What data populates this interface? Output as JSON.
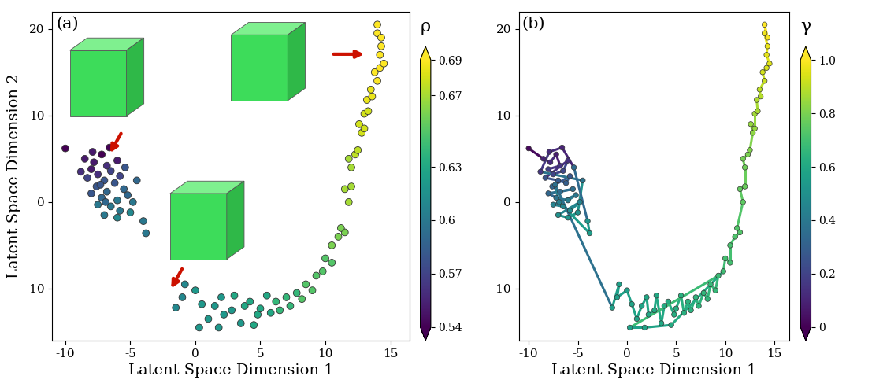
{
  "chart_data": [
    {
      "type": "scatter",
      "title": "(a)",
      "x_label": "Latent Space Dimension 1",
      "y_label": "Latent Space Dimension 2",
      "x": [
        -10,
        -8.5,
        -7.8,
        -7.2,
        -6.8,
        -8,
        -7.5,
        -6.5,
        -6,
        -8.3,
        -7,
        -6.2,
        -5.8,
        -7.6,
        -6.8,
        -5.5,
        -8,
        -7.2,
        -6,
        -5.2,
        -7.5,
        -6.5,
        -5.8,
        -4.8,
        -7,
        -6,
        -5,
        -4.5,
        -8.8,
        -7.9,
        -6.6,
        -5.4,
        -4,
        -3.8,
        -6.9,
        -7.3,
        -1.5,
        -0.8,
        -1,
        0,
        0.5,
        1,
        1.5,
        2,
        2.2,
        2.8,
        3,
        3.5,
        3.8,
        4.2,
        4.8,
        5,
        5.5,
        5.8,
        6.2,
        6.5,
        7,
        7.3,
        7.8,
        8.2,
        8.5,
        9,
        9.3,
        0.3,
        1.8,
        4.5,
        9.8,
        10,
        10.5,
        10.5,
        11,
        11.5,
        11.2,
        11.8,
        11.5,
        12,
        12,
        11.8,
        12.3,
        12.5,
        12.8,
        12.6,
        13,
        13,
        13.3,
        13.2,
        13.6,
        13.5,
        14,
        13.8,
        14.2,
        14.5,
        14.2,
        14.3,
        14,
        14,
        14.3
      ],
      "y": [
        6.2,
        5,
        4.6,
        5.5,
        4.2,
        3.8,
        3.2,
        3.6,
        4.8,
        2.8,
        2.5,
        2.2,
        3,
        1.8,
        1.2,
        1.5,
        1,
        0.5,
        0.2,
        0.8,
        -0.3,
        -0.5,
        -1,
        0,
        -1.5,
        -1.8,
        -1.2,
        2.5,
        3.5,
        5.8,
        6.3,
        4,
        -2.2,
        -3.6,
        0,
        2,
        -12.2,
        -9.5,
        -11,
        -10.2,
        -11.8,
        -13.5,
        -12,
        -11,
        -13,
        -12.5,
        -10.8,
        -14,
        -12,
        -11.5,
        -13,
        -12.3,
        -10.8,
        -12.8,
        -11.5,
        -12.5,
        -11,
        -12,
        -10.5,
        -11.2,
        -9.5,
        -10.2,
        -8.5,
        -14.5,
        -14.5,
        -14.2,
        -8,
        -6.5,
        -7,
        -5,
        -4,
        -3.5,
        -3,
        0,
        1.5,
        1.8,
        4,
        5,
        5.5,
        6,
        8,
        9,
        8.5,
        10.2,
        10.5,
        11.8,
        12.2,
        13,
        14,
        15,
        15.5,
        16,
        17,
        18,
        19.5,
        20.5,
        19
      ],
      "xlim": [
        -11,
        16.5
      ],
      "ylim": [
        -16,
        22
      ],
      "xticks": [
        -10,
        -5,
        0,
        5,
        10,
        15
      ],
      "yticks": [
        -10,
        0,
        10,
        20
      ],
      "colorbar": {
        "label": "ρ",
        "values": [
          0.54,
          0.55,
          0.55,
          0.54,
          0.56,
          0.55,
          0.56,
          0.57,
          0.55,
          0.57,
          0.58,
          0.58,
          0.57,
          0.58,
          0.59,
          0.59,
          0.58,
          0.59,
          0.6,
          0.59,
          0.6,
          0.6,
          0.6,
          0.6,
          0.6,
          0.61,
          0.61,
          0.59,
          0.56,
          0.55,
          0.54,
          0.58,
          0.6,
          0.6,
          0.59,
          0.58,
          0.61,
          0.61,
          0.61,
          0.62,
          0.62,
          0.62,
          0.62,
          0.62,
          0.62,
          0.62,
          0.63,
          0.62,
          0.63,
          0.63,
          0.63,
          0.63,
          0.63,
          0.63,
          0.64,
          0.64,
          0.64,
          0.64,
          0.64,
          0.65,
          0.65,
          0.65,
          0.65,
          0.62,
          0.62,
          0.63,
          0.65,
          0.65,
          0.65,
          0.66,
          0.66,
          0.66,
          0.66,
          0.67,
          0.67,
          0.67,
          0.67,
          0.67,
          0.675,
          0.675,
          0.68,
          0.68,
          0.68,
          0.68,
          0.68,
          0.685,
          0.685,
          0.685,
          0.69,
          0.69,
          0.69,
          0.69,
          0.69,
          0.695,
          0.695,
          0.695,
          0.695
        ],
        "range": [
          0.54,
          0.69
        ],
        "ticks": [
          0.54,
          0.57,
          0.6,
          0.63,
          0.67,
          0.69
        ]
      }
    },
    {
      "type": "line",
      "marker": "o",
      "title": "(b)",
      "x_label": "Latent Space Dimension 1",
      "x": [
        -10,
        -8.5,
        -7.8,
        -7.2,
        -6.8,
        -8,
        -7.5,
        -6.5,
        -6,
        -8.3,
        -7,
        -6.2,
        -5.8,
        -7.6,
        -6.8,
        -5.5,
        -8,
        -7.2,
        -6,
        -5.2,
        -7.5,
        -6.5,
        -5.8,
        -4.8,
        -7,
        -6,
        -5,
        -4.5,
        -8.8,
        -7.9,
        -6.6,
        -5.4,
        -4,
        -3.8,
        -6.9,
        -7.3,
        -1.5,
        -0.8,
        -1,
        0,
        0.5,
        1,
        1.5,
        2,
        2.2,
        2.8,
        3,
        3.5,
        3.8,
        4.2,
        4.8,
        5,
        5.5,
        5.8,
        6.2,
        6.5,
        7,
        7.3,
        7.8,
        8.2,
        8.5,
        9,
        9.3,
        0.3,
        1.8,
        4.5,
        9.8,
        10,
        10.5,
        10.5,
        11,
        11.5,
        11.2,
        11.8,
        11.5,
        12,
        12,
        11.8,
        12.3,
        12.5,
        12.8,
        12.6,
        13,
        13,
        13.3,
        13.2,
        13.6,
        13.5,
        14,
        13.8,
        14.2,
        14.5,
        14.2,
        14.3,
        14,
        14,
        14.3
      ],
      "y": [
        6.2,
        5,
        4.6,
        5.5,
        4.2,
        3.8,
        3.2,
        3.6,
        4.8,
        2.8,
        2.5,
        2.2,
        3,
        1.8,
        1.2,
        1.5,
        1,
        0.5,
        0.2,
        0.8,
        -0.3,
        -0.5,
        -1,
        0,
        -1.5,
        -1.8,
        -1.2,
        2.5,
        3.5,
        5.8,
        6.3,
        4,
        -2.2,
        -3.6,
        0,
        2,
        -12.2,
        -9.5,
        -11,
        -10.2,
        -11.8,
        -13.5,
        -12,
        -11,
        -13,
        -12.5,
        -10.8,
        -14,
        -12,
        -11.5,
        -13,
        -12.3,
        -10.8,
        -12.8,
        -11.5,
        -12.5,
        -11,
        -12,
        -10.5,
        -11.2,
        -9.5,
        -10.2,
        -8.5,
        -14.5,
        -14.5,
        -14.2,
        -8,
        -6.5,
        -7,
        -5,
        -4,
        -3.5,
        -3,
        0,
        1.5,
        1.8,
        4,
        5,
        5.5,
        6,
        8,
        9,
        8.5,
        10.2,
        10.5,
        11.8,
        12.2,
        13,
        14,
        15,
        15.5,
        16,
        17,
        18,
        19.5,
        20.5,
        19
      ],
      "xlim": [
        -11,
        16.5
      ],
      "ylim": [
        -16,
        22
      ],
      "xticks": [
        -10,
        -5,
        0,
        5,
        10,
        15
      ],
      "yticks": [
        -10,
        0,
        10,
        20
      ],
      "colorbar": {
        "label": "γ",
        "values": [
          0.02,
          0.1,
          0.12,
          0.08,
          0.15,
          0.18,
          0.2,
          0.22,
          0.14,
          0.25,
          0.28,
          0.3,
          0.27,
          0.32,
          0.35,
          0.36,
          0.33,
          0.38,
          0.42,
          0.4,
          0.44,
          0.46,
          0.48,
          0.45,
          0.5,
          0.52,
          0.5,
          0.38,
          0.16,
          0.12,
          0.1,
          0.34,
          0.53,
          0.55,
          0.43,
          0.37,
          0.56,
          0.56,
          0.57,
          0.57,
          0.58,
          0.58,
          0.58,
          0.59,
          0.59,
          0.6,
          0.6,
          0.6,
          0.61,
          0.61,
          0.62,
          0.62,
          0.63,
          0.63,
          0.64,
          0.64,
          0.65,
          0.65,
          0.66,
          0.66,
          0.67,
          0.67,
          0.68,
          0.57,
          0.58,
          0.61,
          0.69,
          0.7,
          0.7,
          0.71,
          0.72,
          0.73,
          0.73,
          0.75,
          0.76,
          0.77,
          0.78,
          0.79,
          0.8,
          0.81,
          0.83,
          0.84,
          0.84,
          0.86,
          0.87,
          0.88,
          0.89,
          0.9,
          0.92,
          0.93,
          0.94,
          0.95,
          0.96,
          0.97,
          0.98,
          1.0,
          0.99
        ],
        "range": [
          0,
          1.0
        ],
        "ticks": [
          0,
          0.2,
          0.4,
          0.6,
          0.8,
          {
            "value": 1.0,
            "label": "1.0"
          }
        ]
      }
    }
  ]
}
